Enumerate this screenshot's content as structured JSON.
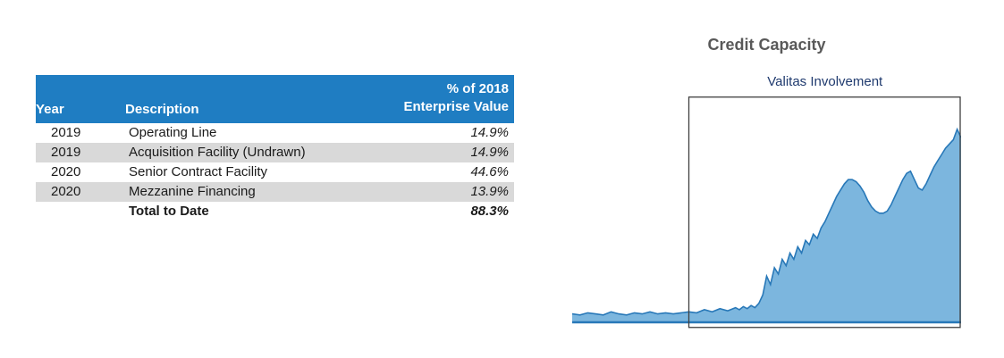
{
  "colors": {
    "header_blue": "#1f7dc2",
    "row_gray": "#d9d9d9",
    "area_fill": "#7cb6de",
    "area_stroke": "#2878b8",
    "box_border": "#3f3f3f",
    "title_gray": "#595959",
    "subtitle_navy": "#1f3a6e"
  },
  "table": {
    "header": {
      "year": "Year",
      "description": "Description",
      "pct_line1": "% of 2018",
      "pct_line2": "Enterprise Value"
    },
    "rows": [
      {
        "year": "2019",
        "description": "Operating Line",
        "pct": "14.9%"
      },
      {
        "year": "2019",
        "description": "Acquisition Facility (Undrawn)",
        "pct": "14.9%"
      },
      {
        "year": "2020",
        "description": "Senior Contract Facility",
        "pct": "44.6%"
      },
      {
        "year": "2020",
        "description": "Mezzanine Financing",
        "pct": "13.9%"
      }
    ],
    "total": {
      "label": "Total to Date",
      "pct": "88.3%"
    }
  },
  "chart_data": {
    "type": "area",
    "title": "Credit Capacity",
    "annotation": "Valitas Involvement",
    "xlabel": "",
    "ylabel": "",
    "x_range": [
      0,
      100
    ],
    "y_range": [
      0,
      100
    ],
    "grid": false,
    "legend": "none",
    "box": {
      "x_start": 30,
      "x_end": 100,
      "label": "Valitas Involvement"
    },
    "points": [
      [
        0,
        4
      ],
      [
        2,
        3.5
      ],
      [
        4,
        4.5
      ],
      [
        6,
        4
      ],
      [
        8,
        3.5
      ],
      [
        10,
        5
      ],
      [
        12,
        4
      ],
      [
        14,
        3.5
      ],
      [
        16,
        4.5
      ],
      [
        18,
        4
      ],
      [
        20,
        5
      ],
      [
        22,
        4
      ],
      [
        24,
        4.5
      ],
      [
        26,
        4
      ],
      [
        28,
        4.5
      ],
      [
        30,
        5
      ],
      [
        32,
        4.5
      ],
      [
        34,
        6
      ],
      [
        36,
        5
      ],
      [
        38,
        6.5
      ],
      [
        40,
        5.5
      ],
      [
        42,
        7
      ],
      [
        43,
        6
      ],
      [
        44,
        7.5
      ],
      [
        45,
        6.5
      ],
      [
        46,
        8
      ],
      [
        47,
        7
      ],
      [
        48,
        9
      ],
      [
        49,
        13
      ],
      [
        50,
        22
      ],
      [
        51,
        18
      ],
      [
        52,
        26
      ],
      [
        53,
        23
      ],
      [
        54,
        30
      ],
      [
        55,
        27
      ],
      [
        56,
        33
      ],
      [
        57,
        30
      ],
      [
        58,
        36
      ],
      [
        59,
        33
      ],
      [
        60,
        39
      ],
      [
        61,
        37
      ],
      [
        62,
        42
      ],
      [
        63,
        40
      ],
      [
        64,
        45
      ],
      [
        65,
        48
      ],
      [
        66,
        52
      ],
      [
        67,
        56
      ],
      [
        68,
        60
      ],
      [
        69,
        63
      ],
      [
        70,
        66
      ],
      [
        71,
        68
      ],
      [
        72,
        68
      ],
      [
        73,
        67
      ],
      [
        74,
        65
      ],
      [
        75,
        62
      ],
      [
        76,
        58
      ],
      [
        77,
        55
      ],
      [
        78,
        53
      ],
      [
        79,
        52
      ],
      [
        80,
        52
      ],
      [
        81,
        53
      ],
      [
        82,
        56
      ],
      [
        83,
        60
      ],
      [
        84,
        64
      ],
      [
        85,
        68
      ],
      [
        86,
        71
      ],
      [
        87,
        72
      ],
      [
        88,
        68
      ],
      [
        89,
        64
      ],
      [
        90,
        63
      ],
      [
        91,
        66
      ],
      [
        92,
        70
      ],
      [
        93,
        74
      ],
      [
        94,
        77
      ],
      [
        95,
        80
      ],
      [
        96,
        83
      ],
      [
        97,
        85
      ],
      [
        98,
        87
      ],
      [
        99,
        92
      ],
      [
        100,
        88
      ]
    ]
  }
}
